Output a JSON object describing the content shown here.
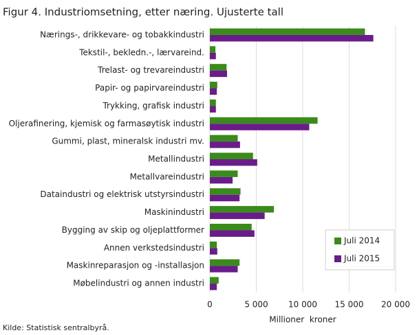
{
  "chart_data": {
    "type": "hbar",
    "title": "Figur 4. Industriomsetning, etter næring. Ujusterte tall",
    "categories": [
      "Nærings-, drikkevare- og tobakkindustri",
      "Tekstil-, bekledn.-, lærvareind.",
      "Trelast- og trevareindustri",
      "Papir- og papirvareindustri",
      "Trykking, grafisk industri",
      "Oljerafinering, kjemisk og farmasøytisk industri",
      "Gummi, plast, mineralsk industri mv.",
      "Metallindustri",
      "Metallvareindustri",
      "Dataindustri og elektrisk utstyrsindustri",
      "Maskinindustri",
      "Bygging av skip og oljeplattformer",
      "Annen verkstedsindustri",
      "Maskinreparasjon og -installasjon",
      "Møbelindustri og annen industri"
    ],
    "series": [
      {
        "name": "Juli 2014",
        "color": "#3a8b1b",
        "values": [
          16700,
          600,
          1800,
          800,
          650,
          11600,
          3000,
          4650,
          3000,
          3300,
          6900,
          4500,
          750,
          3200,
          950
        ]
      },
      {
        "name": "Juli 2015",
        "color": "#6a1c8a",
        "values": [
          17600,
          650,
          1850,
          750,
          650,
          10700,
          3250,
          5100,
          2450,
          3200,
          5900,
          4800,
          800,
          3000,
          750
        ]
      }
    ],
    "xlim": [
      0,
      20000
    ],
    "xticks": [
      0,
      {
        "value": 5000,
        "label": "5 000"
      },
      {
        "value": 10000,
        "label": "10 000"
      },
      {
        "value": 15000,
        "label": "15 000"
      },
      {
        "value": 20000,
        "label": "20 000"
      }
    ],
    "xlabel": "Millioner  kroner",
    "grid": true,
    "legend": "lower-right",
    "source": "Kilde: Statistisk sentralbyrå."
  }
}
